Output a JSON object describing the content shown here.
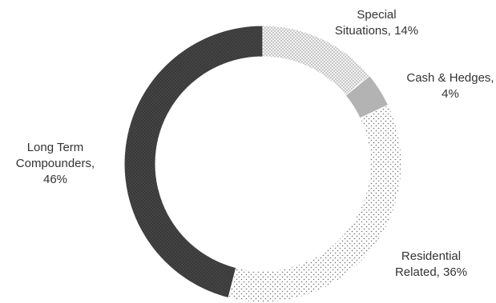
{
  "chart_data": {
    "type": "pie",
    "variant": "donut",
    "title": "",
    "legend": "none",
    "slices": [
      {
        "label": "Special Situations",
        "value": 14,
        "label_lines": [
          "Special",
          "Situations, 14%"
        ],
        "color": "#d9d9d9",
        "pattern": "fine-dots-light"
      },
      {
        "label": "Cash & Hedges",
        "value": 4,
        "label_lines": [
          "Cash & Hedges,",
          "4%"
        ],
        "color": "#b3b3b3",
        "pattern": "solid"
      },
      {
        "label": "Residential Related",
        "value": 36,
        "label_lines": [
          "Residential",
          "Related, 36%"
        ],
        "color": "#e6e6e6",
        "pattern": "sparse-dots"
      },
      {
        "label": "Long Term Compounders",
        "value": 46,
        "label_lines": [
          "Long Term",
          "Compounders,",
          "46%"
        ],
        "color": "#404040",
        "pattern": "dark-dotted"
      }
    ]
  }
}
